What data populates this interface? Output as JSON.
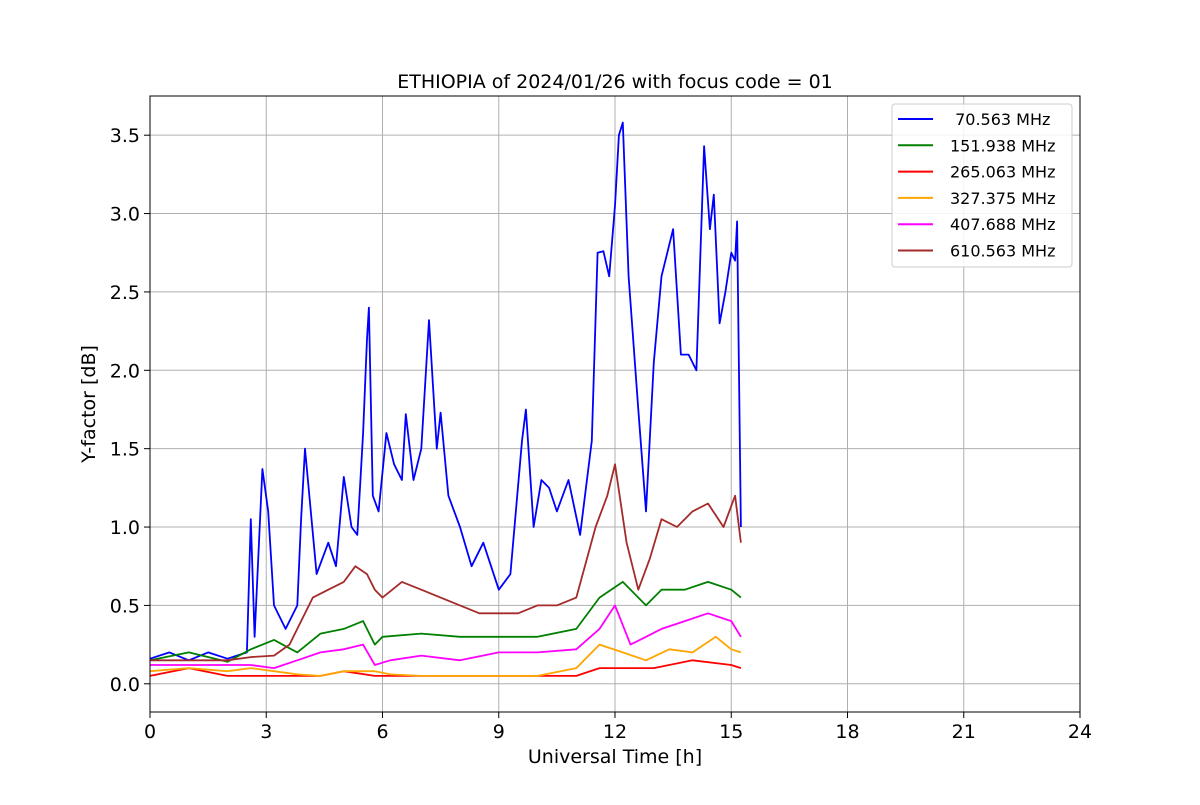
{
  "chart_data": {
    "type": "line",
    "title": "ETHIOPIA of 2024/01/26 with focus code = 01",
    "xlabel": "Universal Time [h]",
    "ylabel": "Y-factor [dB]",
    "xlim": [
      0,
      24
    ],
    "ylim": [
      -0.18,
      3.75
    ],
    "xticks": [
      0,
      3,
      6,
      9,
      12,
      15,
      18,
      21,
      24
    ],
    "xtick_labels": [
      "0",
      "3",
      "6",
      "9",
      "12",
      "15",
      "18",
      "21",
      "24"
    ],
    "yticks": [
      0.0,
      0.5,
      1.0,
      1.5,
      2.0,
      2.5,
      3.0,
      3.5
    ],
    "ytick_labels": [
      "0.0",
      "0.5",
      "1.0",
      "1.5",
      "2.0",
      "2.5",
      "3.0",
      "3.5"
    ],
    "grid": true,
    "legend_position": "top-right",
    "series": [
      {
        "name": " 70.563 MHz",
        "color": "#0000ff",
        "points": [
          [
            0,
            0.16
          ],
          [
            0.5,
            0.2
          ],
          [
            1,
            0.15
          ],
          [
            1.5,
            0.2
          ],
          [
            2,
            0.16
          ],
          [
            2.5,
            0.2
          ],
          [
            2.6,
            1.05
          ],
          [
            2.7,
            0.3
          ],
          [
            2.9,
            1.37
          ],
          [
            3.05,
            1.1
          ],
          [
            3.2,
            0.5
          ],
          [
            3.5,
            0.35
          ],
          [
            3.8,
            0.5
          ],
          [
            3.9,
            1.05
          ],
          [
            4.0,
            1.5
          ],
          [
            4.3,
            0.7
          ],
          [
            4.6,
            0.9
          ],
          [
            4.8,
            0.75
          ],
          [
            5.0,
            1.32
          ],
          [
            5.2,
            1.0
          ],
          [
            5.35,
            0.95
          ],
          [
            5.5,
            1.6
          ],
          [
            5.6,
            2.2
          ],
          [
            5.65,
            2.4
          ],
          [
            5.75,
            1.2
          ],
          [
            5.9,
            1.1
          ],
          [
            6.1,
            1.6
          ],
          [
            6.3,
            1.4
          ],
          [
            6.5,
            1.3
          ],
          [
            6.6,
            1.72
          ],
          [
            6.8,
            1.3
          ],
          [
            7.0,
            1.5
          ],
          [
            7.2,
            2.32
          ],
          [
            7.4,
            1.5
          ],
          [
            7.5,
            1.73
          ],
          [
            7.7,
            1.2
          ],
          [
            8.0,
            1.0
          ],
          [
            8.3,
            0.75
          ],
          [
            8.6,
            0.9
          ],
          [
            9.0,
            0.6
          ],
          [
            9.3,
            0.7
          ],
          [
            9.6,
            1.55
          ],
          [
            9.7,
            1.75
          ],
          [
            9.9,
            1.0
          ],
          [
            10.1,
            1.3
          ],
          [
            10.3,
            1.25
          ],
          [
            10.5,
            1.1
          ],
          [
            10.8,
            1.3
          ],
          [
            11.1,
            0.95
          ],
          [
            11.4,
            1.55
          ],
          [
            11.55,
            2.75
          ],
          [
            11.7,
            2.76
          ],
          [
            11.85,
            2.6
          ],
          [
            12.0,
            3.05
          ],
          [
            12.1,
            3.5
          ],
          [
            12.2,
            3.58
          ],
          [
            12.35,
            2.6
          ],
          [
            12.6,
            1.75
          ],
          [
            12.8,
            1.1
          ],
          [
            13.0,
            2.05
          ],
          [
            13.2,
            2.6
          ],
          [
            13.5,
            2.9
          ],
          [
            13.7,
            2.1
          ],
          [
            13.9,
            2.1
          ],
          [
            14.1,
            2.0
          ],
          [
            14.3,
            3.43
          ],
          [
            14.45,
            2.9
          ],
          [
            14.55,
            3.12
          ],
          [
            14.7,
            2.3
          ],
          [
            14.85,
            2.5
          ],
          [
            15.0,
            2.75
          ],
          [
            15.1,
            2.7
          ],
          [
            15.15,
            2.95
          ],
          [
            15.25,
            1.0
          ]
        ]
      },
      {
        "name": "151.938 MHz",
        "color": "#008000",
        "points": [
          [
            0,
            0.15
          ],
          [
            1,
            0.2
          ],
          [
            2,
            0.14
          ],
          [
            2.6,
            0.22
          ],
          [
            3.2,
            0.28
          ],
          [
            3.8,
            0.2
          ],
          [
            4.4,
            0.32
          ],
          [
            5.0,
            0.35
          ],
          [
            5.5,
            0.4
          ],
          [
            5.8,
            0.25
          ],
          [
            6.0,
            0.3
          ],
          [
            7.0,
            0.32
          ],
          [
            8.0,
            0.3
          ],
          [
            9.0,
            0.3
          ],
          [
            10.0,
            0.3
          ],
          [
            11.0,
            0.35
          ],
          [
            11.6,
            0.55
          ],
          [
            12.2,
            0.65
          ],
          [
            12.8,
            0.5
          ],
          [
            13.2,
            0.6
          ],
          [
            13.8,
            0.6
          ],
          [
            14.4,
            0.65
          ],
          [
            15.0,
            0.6
          ],
          [
            15.25,
            0.55
          ]
        ]
      },
      {
        "name": "265.063 MHz",
        "color": "#ff0000",
        "points": [
          [
            0,
            0.05
          ],
          [
            1,
            0.1
          ],
          [
            2,
            0.05
          ],
          [
            2.6,
            0.05
          ],
          [
            3.2,
            0.05
          ],
          [
            3.8,
            0.05
          ],
          [
            4.4,
            0.05
          ],
          [
            5.0,
            0.08
          ],
          [
            5.8,
            0.05
          ],
          [
            6.2,
            0.05
          ],
          [
            7.0,
            0.05
          ],
          [
            8.0,
            0.05
          ],
          [
            9.0,
            0.05
          ],
          [
            10.0,
            0.05
          ],
          [
            11.0,
            0.05
          ],
          [
            11.6,
            0.1
          ],
          [
            12.4,
            0.1
          ],
          [
            13.0,
            0.1
          ],
          [
            14.0,
            0.15
          ],
          [
            15.0,
            0.12
          ],
          [
            15.25,
            0.1
          ]
        ]
      },
      {
        "name": "327.375 MHz",
        "color": "#ffa500",
        "points": [
          [
            0,
            0.08
          ],
          [
            1,
            0.1
          ],
          [
            2,
            0.08
          ],
          [
            2.6,
            0.1
          ],
          [
            3.2,
            0.08
          ],
          [
            3.8,
            0.06
          ],
          [
            4.4,
            0.05
          ],
          [
            5.0,
            0.08
          ],
          [
            5.8,
            0.08
          ],
          [
            6.2,
            0.06
          ],
          [
            7.0,
            0.05
          ],
          [
            8.0,
            0.05
          ],
          [
            9.0,
            0.05
          ],
          [
            10.0,
            0.05
          ],
          [
            11.0,
            0.1
          ],
          [
            11.6,
            0.25
          ],
          [
            12.2,
            0.2
          ],
          [
            12.8,
            0.15
          ],
          [
            13.4,
            0.22
          ],
          [
            14.0,
            0.2
          ],
          [
            14.6,
            0.3
          ],
          [
            15.0,
            0.22
          ],
          [
            15.25,
            0.2
          ]
        ]
      },
      {
        "name": "407.688 MHz",
        "color": "#ff00ff",
        "points": [
          [
            0,
            0.12
          ],
          [
            1,
            0.12
          ],
          [
            2,
            0.12
          ],
          [
            2.6,
            0.12
          ],
          [
            3.2,
            0.1
          ],
          [
            3.8,
            0.15
          ],
          [
            4.4,
            0.2
          ],
          [
            5.0,
            0.22
          ],
          [
            5.5,
            0.25
          ],
          [
            5.8,
            0.12
          ],
          [
            6.2,
            0.15
          ],
          [
            7.0,
            0.18
          ],
          [
            8.0,
            0.15
          ],
          [
            9.0,
            0.2
          ],
          [
            10.0,
            0.2
          ],
          [
            11.0,
            0.22
          ],
          [
            11.6,
            0.35
          ],
          [
            12.0,
            0.5
          ],
          [
            12.4,
            0.25
          ],
          [
            12.8,
            0.3
          ],
          [
            13.2,
            0.35
          ],
          [
            13.8,
            0.4
          ],
          [
            14.4,
            0.45
          ],
          [
            15.0,
            0.4
          ],
          [
            15.25,
            0.3
          ]
        ]
      },
      {
        "name": "610.563 MHz",
        "color": "#a52a2a",
        "points": [
          [
            0,
            0.15
          ],
          [
            1,
            0.15
          ],
          [
            2,
            0.15
          ],
          [
            2.6,
            0.17
          ],
          [
            3.2,
            0.18
          ],
          [
            3.6,
            0.25
          ],
          [
            3.9,
            0.4
          ],
          [
            4.2,
            0.55
          ],
          [
            4.6,
            0.6
          ],
          [
            5.0,
            0.65
          ],
          [
            5.3,
            0.75
          ],
          [
            5.6,
            0.7
          ],
          [
            5.8,
            0.6
          ],
          [
            6.0,
            0.55
          ],
          [
            6.5,
            0.65
          ],
          [
            7.0,
            0.6
          ],
          [
            7.5,
            0.55
          ],
          [
            8.0,
            0.5
          ],
          [
            8.5,
            0.45
          ],
          [
            9.0,
            0.45
          ],
          [
            9.5,
            0.45
          ],
          [
            10.0,
            0.5
          ],
          [
            10.5,
            0.5
          ],
          [
            11.0,
            0.55
          ],
          [
            11.5,
            1.0
          ],
          [
            11.8,
            1.2
          ],
          [
            12.0,
            1.4
          ],
          [
            12.3,
            0.9
          ],
          [
            12.6,
            0.6
          ],
          [
            12.9,
            0.8
          ],
          [
            13.2,
            1.05
          ],
          [
            13.6,
            1.0
          ],
          [
            14.0,
            1.1
          ],
          [
            14.4,
            1.15
          ],
          [
            14.8,
            1.0
          ],
          [
            15.1,
            1.2
          ],
          [
            15.25,
            0.9
          ]
        ]
      }
    ]
  }
}
